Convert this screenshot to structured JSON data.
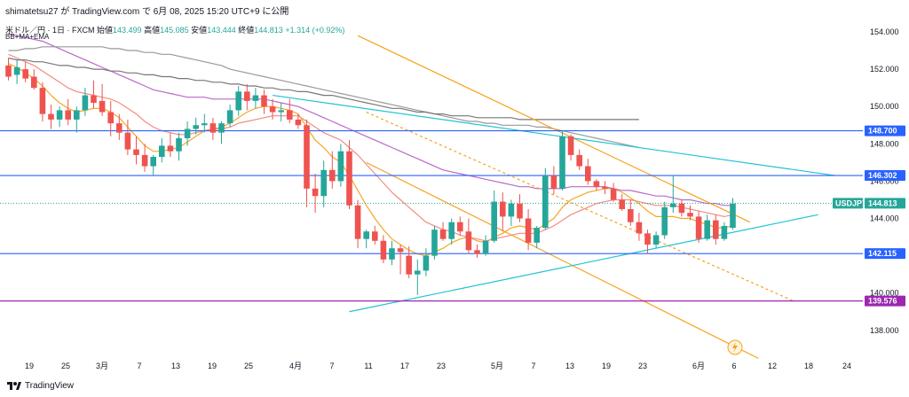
{
  "header": {
    "attribution": "shimatetsu27 が TradingView.com で 6月 08, 2025 15:20 UTC+9 に公開",
    "symbol": "米ドル／円 · 1日 · FXCM",
    "open_label": "始値",
    "open": "143.499",
    "high_label": "高値",
    "high": "145.085",
    "low_label": "安値",
    "low": "143.444",
    "close_label": "終値",
    "close": "144.813",
    "change": "+1.314 (+0.92%)",
    "indicators": "BB+MA+EMA"
  },
  "footer": {
    "brand": "TradingView"
  },
  "colors": {
    "up": "#26a69a",
    "down": "#ef5350",
    "blue_line": "#2962ff",
    "purple_line": "#9c27b0",
    "orange": "#f7a21b",
    "cyan": "#22c2d2",
    "gray_dark": "#555555",
    "gray_light": "#b0b0b0",
    "ma_purple": "#ba68c8",
    "ma_pink": "#f28b82",
    "ema_orange": "#f5a623",
    "ma_gray": "#777777"
  },
  "chart_data": {
    "type": "candlestick",
    "title": "米ドル／円 · 1日 · FXCM",
    "ylim": [
      137.0,
      155.0
    ],
    "y_ticks": [
      138.0,
      140.0,
      142.0,
      144.0,
      146.0,
      148.0,
      150.0,
      152.0,
      154.0
    ],
    "x_tick_labels": [
      "19",
      "25",
      "3月",
      "7",
      "13",
      "19",
      "25",
      "4月",
      "7",
      "11",
      "17",
      "23",
      "5月",
      "7",
      "13",
      "19",
      "23",
      "6月",
      "6",
      "12",
      "18",
      "24"
    ],
    "price_levels": [
      {
        "label": "148.700",
        "value": 148.7,
        "color": "#2962ff"
      },
      {
        "label": "146.302",
        "value": 146.302,
        "color": "#2962ff"
      },
      {
        "label": "142.115",
        "value": 142.115,
        "color": "#2962ff"
      },
      {
        "label": "139.576",
        "value": 139.576,
        "color": "#9c27b0"
      }
    ],
    "current_price": {
      "symbol": "USDJPY",
      "value": 144.813
    },
    "candles": [
      {
        "o": 152.2,
        "h": 152.6,
        "l": 151.4,
        "c": 151.6
      },
      {
        "o": 151.7,
        "h": 152.5,
        "l": 151.2,
        "c": 152.1
      },
      {
        "o": 152.0,
        "h": 152.4,
        "l": 151.3,
        "c": 151.5
      },
      {
        "o": 151.6,
        "h": 152.0,
        "l": 150.9,
        "c": 151.0
      },
      {
        "o": 151.0,
        "h": 151.3,
        "l": 149.2,
        "c": 149.6
      },
      {
        "o": 149.6,
        "h": 150.1,
        "l": 148.8,
        "c": 149.3
      },
      {
        "o": 149.3,
        "h": 150.0,
        "l": 148.9,
        "c": 149.8
      },
      {
        "o": 149.8,
        "h": 150.4,
        "l": 149.0,
        "c": 149.3
      },
      {
        "o": 149.3,
        "h": 150.0,
        "l": 148.6,
        "c": 149.8
      },
      {
        "o": 149.8,
        "h": 151.0,
        "l": 149.5,
        "c": 150.6
      },
      {
        "o": 150.6,
        "h": 151.4,
        "l": 149.9,
        "c": 150.2
      },
      {
        "o": 150.3,
        "h": 151.2,
        "l": 149.5,
        "c": 149.7
      },
      {
        "o": 149.7,
        "h": 150.3,
        "l": 148.4,
        "c": 149.1
      },
      {
        "o": 149.1,
        "h": 149.6,
        "l": 148.2,
        "c": 148.6
      },
      {
        "o": 148.6,
        "h": 149.3,
        "l": 147.4,
        "c": 147.7
      },
      {
        "o": 147.7,
        "h": 148.4,
        "l": 146.9,
        "c": 147.4
      },
      {
        "o": 147.4,
        "h": 148.0,
        "l": 146.5,
        "c": 146.8
      },
      {
        "o": 146.8,
        "h": 147.4,
        "l": 146.3,
        "c": 147.3
      },
      {
        "o": 147.3,
        "h": 148.3,
        "l": 147.0,
        "c": 147.9
      },
      {
        "o": 147.9,
        "h": 148.6,
        "l": 147.3,
        "c": 147.6
      },
      {
        "o": 147.6,
        "h": 148.6,
        "l": 147.1,
        "c": 148.3
      },
      {
        "o": 148.3,
        "h": 149.2,
        "l": 147.9,
        "c": 148.8
      },
      {
        "o": 148.8,
        "h": 149.4,
        "l": 148.5,
        "c": 149.0
      },
      {
        "o": 149.0,
        "h": 149.6,
        "l": 148.6,
        "c": 149.1
      },
      {
        "o": 149.1,
        "h": 149.4,
        "l": 148.2,
        "c": 148.6
      },
      {
        "o": 148.6,
        "h": 149.2,
        "l": 148.0,
        "c": 149.1
      },
      {
        "o": 149.1,
        "h": 150.1,
        "l": 148.9,
        "c": 149.8
      },
      {
        "o": 149.8,
        "h": 151.1,
        "l": 149.5,
        "c": 150.8
      },
      {
        "o": 150.8,
        "h": 151.2,
        "l": 149.8,
        "c": 150.3
      },
      {
        "o": 150.3,
        "h": 151.0,
        "l": 149.9,
        "c": 150.6
      },
      {
        "o": 150.6,
        "h": 150.9,
        "l": 149.6,
        "c": 150.0
      },
      {
        "o": 150.0,
        "h": 150.4,
        "l": 149.3,
        "c": 149.7
      },
      {
        "o": 149.7,
        "h": 150.2,
        "l": 149.2,
        "c": 149.8
      },
      {
        "o": 149.8,
        "h": 150.4,
        "l": 149.1,
        "c": 149.3
      },
      {
        "o": 149.3,
        "h": 149.6,
        "l": 148.8,
        "c": 149.0
      },
      {
        "o": 149.0,
        "h": 149.3,
        "l": 144.6,
        "c": 145.6
      },
      {
        "o": 145.6,
        "h": 146.4,
        "l": 144.3,
        "c": 145.2
      },
      {
        "o": 145.2,
        "h": 147.1,
        "l": 144.6,
        "c": 146.6
      },
      {
        "o": 146.6,
        "h": 147.6,
        "l": 145.6,
        "c": 146.0
      },
      {
        "o": 146.0,
        "h": 148.0,
        "l": 145.7,
        "c": 147.6
      },
      {
        "o": 147.6,
        "h": 148.2,
        "l": 144.5,
        "c": 144.7
      },
      {
        "o": 144.7,
        "h": 145.0,
        "l": 142.4,
        "c": 142.9
      },
      {
        "o": 142.9,
        "h": 143.4,
        "l": 142.4,
        "c": 143.3
      },
      {
        "o": 143.3,
        "h": 143.6,
        "l": 142.6,
        "c": 142.8
      },
      {
        "o": 142.8,
        "h": 143.1,
        "l": 141.6,
        "c": 141.8
      },
      {
        "o": 141.8,
        "h": 142.8,
        "l": 141.5,
        "c": 142.4
      },
      {
        "o": 142.4,
        "h": 142.6,
        "l": 141.0,
        "c": 142.2
      },
      {
        "o": 142.0,
        "h": 142.5,
        "l": 140.8,
        "c": 141.0
      },
      {
        "o": 141.0,
        "h": 141.8,
        "l": 139.9,
        "c": 141.2
      },
      {
        "o": 141.2,
        "h": 142.4,
        "l": 140.9,
        "c": 142.0
      },
      {
        "o": 142.0,
        "h": 143.6,
        "l": 141.8,
        "c": 143.4
      },
      {
        "o": 143.4,
        "h": 143.8,
        "l": 142.8,
        "c": 142.9
      },
      {
        "o": 142.9,
        "h": 144.0,
        "l": 142.6,
        "c": 143.8
      },
      {
        "o": 143.8,
        "h": 144.1,
        "l": 143.1,
        "c": 143.3
      },
      {
        "o": 143.3,
        "h": 144.0,
        "l": 142.1,
        "c": 142.3
      },
      {
        "o": 142.3,
        "h": 142.6,
        "l": 141.9,
        "c": 142.1
      },
      {
        "o": 142.1,
        "h": 143.1,
        "l": 142.0,
        "c": 142.8
      },
      {
        "o": 142.8,
        "h": 145.5,
        "l": 142.7,
        "c": 144.9
      },
      {
        "o": 144.9,
        "h": 145.4,
        "l": 143.3,
        "c": 144.1
      },
      {
        "o": 144.1,
        "h": 145.0,
        "l": 143.6,
        "c": 144.8
      },
      {
        "o": 144.8,
        "h": 145.3,
        "l": 143.8,
        "c": 144.0
      },
      {
        "o": 144.0,
        "h": 144.5,
        "l": 142.3,
        "c": 142.7
      },
      {
        "o": 142.7,
        "h": 143.6,
        "l": 142.4,
        "c": 143.5
      },
      {
        "o": 143.5,
        "h": 146.7,
        "l": 143.4,
        "c": 146.3
      },
      {
        "o": 146.3,
        "h": 146.8,
        "l": 145.3,
        "c": 145.6
      },
      {
        "o": 145.6,
        "h": 148.7,
        "l": 145.5,
        "c": 148.4
      },
      {
        "o": 148.4,
        "h": 148.5,
        "l": 147.1,
        "c": 147.4
      },
      {
        "o": 147.4,
        "h": 147.7,
        "l": 146.6,
        "c": 146.8
      },
      {
        "o": 146.8,
        "h": 147.2,
        "l": 145.8,
        "c": 146.0
      },
      {
        "o": 146.0,
        "h": 146.1,
        "l": 145.5,
        "c": 145.7
      },
      {
        "o": 145.7,
        "h": 146.0,
        "l": 145.3,
        "c": 145.6
      },
      {
        "o": 145.6,
        "h": 145.9,
        "l": 144.9,
        "c": 145.0
      },
      {
        "o": 145.0,
        "h": 145.3,
        "l": 144.4,
        "c": 144.5
      },
      {
        "o": 144.5,
        "h": 145.0,
        "l": 143.6,
        "c": 143.8
      },
      {
        "o": 143.8,
        "h": 144.3,
        "l": 142.8,
        "c": 143.2
      },
      {
        "o": 143.2,
        "h": 143.4,
        "l": 142.1,
        "c": 142.6
      },
      {
        "o": 142.6,
        "h": 143.3,
        "l": 142.4,
        "c": 143.1
      },
      {
        "o": 143.1,
        "h": 144.9,
        "l": 142.9,
        "c": 144.6
      },
      {
        "o": 144.6,
        "h": 146.3,
        "l": 144.3,
        "c": 144.8
      },
      {
        "o": 144.8,
        "h": 145.0,
        "l": 144.1,
        "c": 144.3
      },
      {
        "o": 144.3,
        "h": 144.7,
        "l": 143.9,
        "c": 144.1
      },
      {
        "o": 144.1,
        "h": 144.4,
        "l": 142.7,
        "c": 142.9
      },
      {
        "o": 142.9,
        "h": 144.2,
        "l": 142.8,
        "c": 143.9
      },
      {
        "o": 143.9,
        "h": 144.2,
        "l": 142.6,
        "c": 142.9
      },
      {
        "o": 142.9,
        "h": 143.8,
        "l": 142.8,
        "c": 143.6
      },
      {
        "o": 143.5,
        "h": 145.1,
        "l": 143.4,
        "c": 144.8
      }
    ],
    "ma_series": [
      {
        "color": "#f5a623",
        "values": [
          152.3,
          152.1,
          151.8,
          151.5,
          151.1,
          150.6,
          150.2,
          149.9,
          149.7,
          149.8,
          149.9,
          149.9,
          149.7,
          149.4,
          148.9,
          148.4,
          147.9,
          147.6,
          147.6,
          147.7,
          147.8,
          148.1,
          148.4,
          148.7,
          148.8,
          148.9,
          149.1,
          149.4,
          149.7,
          149.9,
          150.0,
          150.0,
          149.9,
          149.8,
          149.6,
          148.9,
          148.2,
          147.8,
          147.3,
          147.0,
          146.3,
          145.5,
          144.7,
          144.0,
          143.4,
          142.9,
          142.6,
          142.3,
          142.1,
          142.0,
          142.2,
          142.4,
          142.7,
          142.9,
          143.0,
          142.8,
          142.7,
          143.0,
          143.2,
          143.5,
          143.6,
          143.5,
          143.4,
          143.7,
          144.0,
          144.6,
          145.0,
          145.2,
          145.4,
          145.5,
          145.6,
          145.6,
          145.4,
          145.1,
          144.8,
          144.4,
          144.1,
          144.1,
          144.1,
          144.0,
          144.0,
          143.8,
          143.7,
          143.5,
          143.5,
          143.6
        ]
      },
      {
        "color": "#f28b82",
        "values": [
          152.8,
          152.6,
          152.4,
          152.2,
          151.9,
          151.6,
          151.3,
          151.0,
          150.8,
          150.7,
          150.6,
          150.5,
          150.4,
          150.2,
          149.9,
          149.6,
          149.2,
          148.9,
          148.7,
          148.6,
          148.5,
          148.5,
          148.6,
          148.7,
          148.8,
          148.8,
          148.9,
          149.1,
          149.2,
          149.3,
          149.4,
          149.5,
          149.5,
          149.5,
          149.5,
          149.2,
          148.9,
          148.6,
          148.4,
          148.2,
          147.8,
          147.4,
          146.9,
          146.4,
          145.9,
          145.4,
          145.0,
          144.6,
          144.2,
          143.8,
          143.6,
          143.4,
          143.3,
          143.1,
          143.0,
          142.9,
          142.8,
          142.9,
          143.0,
          143.1,
          143.2,
          143.2,
          143.2,
          143.4,
          143.6,
          143.9,
          144.2,
          144.4,
          144.6,
          144.8,
          144.9,
          145.0,
          145.0,
          145.0,
          144.9,
          144.8,
          144.7,
          144.7,
          144.7,
          144.6,
          144.5,
          144.4,
          144.3,
          144.2,
          144.1,
          144.2
        ]
      },
      {
        "color": "#ba68c8",
        "values": [
          153.9,
          153.8,
          153.7,
          153.6,
          153.5,
          153.3,
          153.1,
          152.9,
          152.7,
          152.5,
          152.3,
          152.1,
          151.9,
          151.7,
          151.5,
          151.3,
          151.1,
          150.9,
          150.8,
          150.7,
          150.6,
          150.5,
          150.5,
          150.5,
          150.4,
          150.4,
          150.4,
          150.4,
          150.4,
          150.4,
          150.4,
          150.3,
          150.2,
          150.1,
          150.0,
          149.8,
          149.6,
          149.4,
          149.2,
          149.0,
          148.8,
          148.6,
          148.4,
          148.2,
          148.0,
          147.8,
          147.6,
          147.4,
          147.2,
          147.0,
          146.8,
          146.6,
          146.5,
          146.4,
          146.3,
          146.2,
          146.1,
          146.0,
          145.9,
          145.8,
          145.7,
          145.7,
          145.6,
          145.6,
          145.6,
          145.6,
          145.7,
          145.7,
          145.7,
          145.7,
          145.7,
          145.6,
          145.5,
          145.5,
          145.4,
          145.3,
          145.2,
          145.2,
          145.1,
          145.0,
          145.0,
          144.9,
          144.8,
          144.8,
          144.7,
          144.7
        ]
      },
      {
        "color": "#999999",
        "values": [
          153.0,
          153.0,
          153.1,
          153.1,
          153.2,
          153.2,
          153.2,
          153.2,
          153.2,
          153.2,
          153.2,
          153.2,
          153.1,
          153.1,
          153.0,
          153.0,
          152.9,
          152.9,
          152.8,
          152.8,
          152.7,
          152.6,
          152.5,
          152.4,
          152.3,
          152.2,
          152.0,
          151.9,
          151.8,
          151.7,
          151.6,
          151.5,
          151.4,
          151.3,
          151.2,
          151.1,
          151.0,
          150.9,
          150.8,
          150.7,
          150.6,
          150.5,
          150.4,
          150.3,
          150.2,
          150.1,
          150.0,
          149.9,
          149.8,
          149.7,
          149.6,
          149.5,
          149.4,
          149.3,
          149.2,
          149.2,
          149.1,
          149.1,
          149.0,
          149.0,
          149.0,
          149.0,
          148.9,
          148.9,
          148.8,
          148.7,
          148.6,
          148.5,
          148.4,
          148.3,
          148.2,
          148.1,
          148.0,
          147.9,
          147.8
        ]
      },
      {
        "color": "#777777",
        "values": [
          152.6,
          152.5,
          152.5,
          152.4,
          152.4,
          152.3,
          152.2,
          152.2,
          152.1,
          152.1,
          152.0,
          152.0,
          151.9,
          151.9,
          151.8,
          151.8,
          151.7,
          151.7,
          151.6,
          151.6,
          151.5,
          151.5,
          151.4,
          151.4,
          151.3,
          151.3,
          151.2,
          151.2,
          151.1,
          151.1,
          151.0,
          151.0,
          150.9,
          150.9,
          150.8,
          150.8,
          150.7,
          150.6,
          150.6,
          150.5,
          150.4,
          150.3,
          150.2,
          150.1,
          150.0,
          149.9,
          149.9,
          149.8,
          149.7,
          149.7,
          149.6,
          149.6,
          149.5,
          149.5,
          149.5,
          149.4,
          149.4,
          149.4,
          149.4,
          149.4,
          149.3,
          149.3,
          149.3,
          149.3,
          149.3,
          149.3,
          149.3,
          149.3,
          149.3,
          149.3,
          149.3,
          149.3,
          149.3,
          149.3,
          149.3
        ]
      }
    ],
    "trendlines": [
      {
        "color": "#f7a21b",
        "dash": false,
        "x1": 41,
        "y1": 153.8,
        "x2": 87,
        "y2": 143.8
      },
      {
        "color": "#f7a21b",
        "dash": false,
        "x1": 42,
        "y1": 147.0,
        "x2": 88,
        "y2": 136.5
      },
      {
        "color": "#22c2d2",
        "dash": false,
        "x1": 31,
        "y1": 150.6,
        "x2": 97,
        "y2": 146.3
      },
      {
        "color": "#22c2d2",
        "dash": false,
        "x1": 40,
        "y1": 139.0,
        "x2": 95,
        "y2": 144.2
      },
      {
        "color": "#f7a21b",
        "dash": true,
        "x1": 42,
        "y1": 149.7,
        "x2": 92,
        "y2": 139.6
      }
    ]
  }
}
